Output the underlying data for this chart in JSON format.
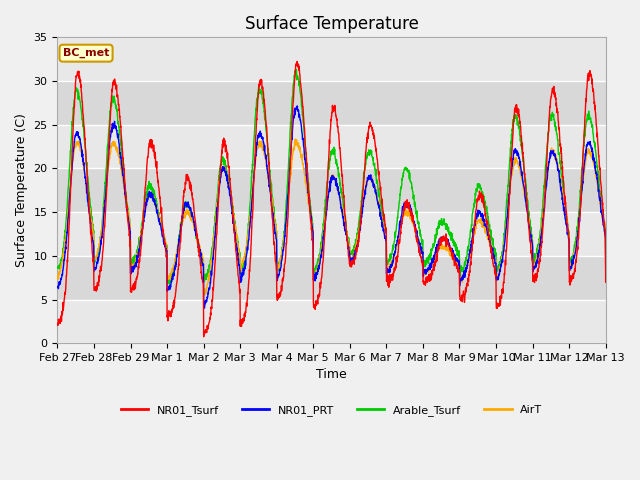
{
  "title": "Surface Temperature",
  "xlabel": "Time",
  "ylabel": "Surface Temperature (C)",
  "ylim": [
    0,
    35
  ],
  "annotation_text": "BC_met",
  "legend_labels": [
    "NR01_Tsurf",
    "NR01_PRT",
    "Arable_Tsurf",
    "AirT"
  ],
  "line_colors": [
    "#ff0000",
    "#0000ff",
    "#00cc00",
    "#ffaa00"
  ],
  "tick_labels": [
    "Feb 27",
    "Feb 28",
    "Feb 29",
    "Mar 1",
    "Mar 2",
    "Mar 3",
    "Mar 4",
    "Mar 5",
    "Mar 6",
    "Mar 7",
    "Mar 8",
    "Mar 9",
    "Mar 10",
    "Mar 11",
    "Mar 12",
    "Mar 13"
  ],
  "tick_positions": [
    0,
    1,
    2,
    3,
    4,
    5,
    6,
    7,
    8,
    9,
    10,
    11,
    12,
    13,
    14,
    15
  ],
  "fig_bg_color": "#f0f0f0",
  "plot_bg_color": "#e8e8e8",
  "band_colors": [
    "#e8e8e8",
    "#d8d8d8"
  ],
  "grid_color": "#ffffff",
  "title_fontsize": 12,
  "label_fontsize": 9,
  "tick_fontsize": 8,
  "peak_heights_red": [
    31,
    30,
    23,
    19,
    23,
    30,
    32,
    27,
    25,
    16,
    12,
    17,
    27,
    29,
    31,
    9
  ],
  "trough_red": [
    2,
    6,
    6,
    3,
    1,
    2,
    5,
    4,
    9,
    7,
    7,
    5,
    4,
    7,
    7,
    9
  ],
  "peak_heights_blue": [
    24,
    25,
    17,
    16,
    20,
    24,
    27,
    19,
    19,
    16,
    12,
    15,
    22,
    22,
    23,
    9
  ],
  "trough_blue": [
    6,
    8,
    8,
    6,
    4,
    7,
    7,
    7,
    9,
    8,
    8,
    7,
    7,
    8,
    8,
    9
  ],
  "peak_heights_green": [
    29,
    28,
    18,
    16,
    21,
    29,
    31,
    22,
    22,
    20,
    14,
    18,
    26,
    26,
    26,
    9
  ],
  "trough_green": [
    8,
    9,
    9,
    7,
    7,
    8,
    8,
    8,
    10,
    9,
    9,
    8,
    8,
    9,
    9,
    9
  ],
  "peak_heights_orange": [
    23,
    23,
    17,
    15,
    20,
    23,
    23,
    19,
    19,
    15,
    11,
    14,
    21,
    22,
    22,
    9
  ],
  "trough_orange": [
    7,
    9,
    8,
    7,
    5,
    8,
    8,
    7,
    9,
    8,
    8,
    7,
    7,
    8,
    8,
    9
  ],
  "n_per_day": 144
}
